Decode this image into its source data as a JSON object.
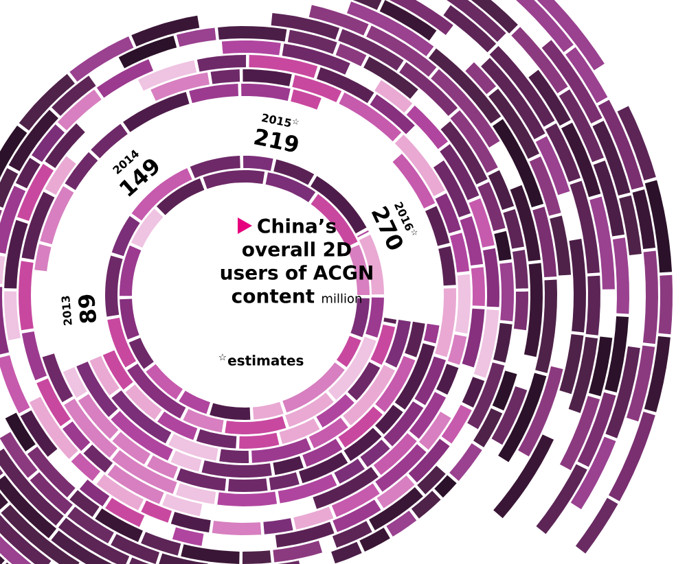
{
  "chart_data": {
    "type": "other",
    "title": "China’s overall 2D users of ACGN content",
    "subtitle": "million",
    "categories": [
      "2013",
      "2014",
      "2015$^{☆}$",
      "2016$^{☆}$"
    ],
    "values": [
      89,
      149,
      219,
      270
    ],
    "data_labels": true,
    "annotations": [
      "$^{☆}$estimates"
    ]
  }
}
